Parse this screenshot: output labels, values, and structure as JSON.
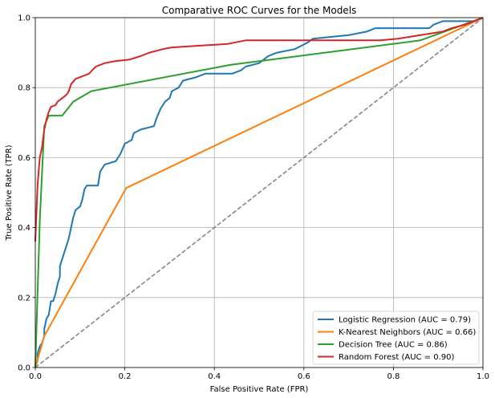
{
  "chart_data": {
    "type": "line",
    "title": "Comparative ROC Curves for the Models",
    "xlabel": "False Positive Rate (FPR)",
    "ylabel": "True Positive Rate (TPR)",
    "xlim": [
      0,
      1
    ],
    "ylim": [
      0,
      1
    ],
    "xticks": [
      "0.0",
      "0.2",
      "0.4",
      "0.6",
      "0.8",
      "1.0"
    ],
    "yticks": [
      "0.0",
      "0.2",
      "0.4",
      "0.6",
      "0.8",
      "1.0"
    ],
    "grid": true,
    "legend_position": "lower right",
    "series": [
      {
        "name": "Logistic Regression (AUC = 0.79)",
        "color": "#1f77b4",
        "points": [
          [
            0,
            0
          ],
          [
            0.005,
            0.02
          ],
          [
            0.005,
            0.04
          ],
          [
            0.01,
            0.06
          ],
          [
            0.015,
            0.07
          ],
          [
            0.02,
            0.09
          ],
          [
            0.02,
            0.11
          ],
          [
            0.025,
            0.14
          ],
          [
            0.03,
            0.15
          ],
          [
            0.035,
            0.19
          ],
          [
            0.04,
            0.19
          ],
          [
            0.045,
            0.21
          ],
          [
            0.05,
            0.24
          ],
          [
            0.055,
            0.26
          ],
          [
            0.055,
            0.29
          ],
          [
            0.06,
            0.31
          ],
          [
            0.065,
            0.33
          ],
          [
            0.07,
            0.35
          ],
          [
            0.075,
            0.37
          ],
          [
            0.08,
            0.4
          ],
          [
            0.085,
            0.43
          ],
          [
            0.09,
            0.45
          ],
          [
            0.1,
            0.46
          ],
          [
            0.105,
            0.48
          ],
          [
            0.11,
            0.51
          ],
          [
            0.115,
            0.52
          ],
          [
            0.14,
            0.52
          ],
          [
            0.145,
            0.56
          ],
          [
            0.155,
            0.58
          ],
          [
            0.18,
            0.59
          ],
          [
            0.19,
            0.61
          ],
          [
            0.2,
            0.64
          ],
          [
            0.215,
            0.65
          ],
          [
            0.22,
            0.67
          ],
          [
            0.235,
            0.68
          ],
          [
            0.265,
            0.69
          ],
          [
            0.27,
            0.71
          ],
          [
            0.28,
            0.74
          ],
          [
            0.29,
            0.76
          ],
          [
            0.3,
            0.77
          ],
          [
            0.305,
            0.79
          ],
          [
            0.32,
            0.8
          ],
          [
            0.33,
            0.82
          ],
          [
            0.36,
            0.83
          ],
          [
            0.38,
            0.84
          ],
          [
            0.44,
            0.84
          ],
          [
            0.46,
            0.85
          ],
          [
            0.47,
            0.86
          ],
          [
            0.5,
            0.87
          ],
          [
            0.51,
            0.88
          ],
          [
            0.52,
            0.89
          ],
          [
            0.54,
            0.9
          ],
          [
            0.58,
            0.91
          ],
          [
            0.61,
            0.93
          ],
          [
            0.62,
            0.94
          ],
          [
            0.7,
            0.95
          ],
          [
            0.74,
            0.96
          ],
          [
            0.76,
            0.97
          ],
          [
            0.88,
            0.97
          ],
          [
            0.89,
            0.98
          ],
          [
            0.91,
            0.99
          ],
          [
            0.98,
            0.99
          ],
          [
            1,
            1
          ]
        ]
      },
      {
        "name": "K-Nearest Neighbors (AUC = 0.66)",
        "color": "#ff7f0e",
        "points": [
          [
            0,
            0
          ],
          [
            0.02,
            0.09
          ],
          [
            0.203,
            0.513
          ],
          [
            1,
            1
          ]
        ]
      },
      {
        "name": "Decision Tree (AUC = 0.86)",
        "color": "#2ca02c",
        "points": [
          [
            0,
            0
          ],
          [
            0.01,
            0.42
          ],
          [
            0.02,
            0.69
          ],
          [
            0.03,
            0.72
          ],
          [
            0.06,
            0.72
          ],
          [
            0.085,
            0.76
          ],
          [
            0.125,
            0.79
          ],
          [
            0.435,
            0.865
          ],
          [
            0.86,
            0.935
          ],
          [
            1,
            1
          ]
        ]
      },
      {
        "name": "Random Forest (AUC = 0.90)",
        "color": "#d62728",
        "points": [
          [
            0,
            0.36
          ],
          [
            0.005,
            0.52
          ],
          [
            0.01,
            0.6
          ],
          [
            0.015,
            0.63
          ],
          [
            0.02,
            0.68
          ],
          [
            0.025,
            0.71
          ],
          [
            0.03,
            0.73
          ],
          [
            0.035,
            0.745
          ],
          [
            0.045,
            0.75
          ],
          [
            0.05,
            0.76
          ],
          [
            0.055,
            0.765
          ],
          [
            0.06,
            0.77
          ],
          [
            0.07,
            0.78
          ],
          [
            0.075,
            0.79
          ],
          [
            0.08,
            0.81
          ],
          [
            0.09,
            0.825
          ],
          [
            0.12,
            0.84
          ],
          [
            0.135,
            0.86
          ],
          [
            0.155,
            0.87
          ],
          [
            0.175,
            0.875
          ],
          [
            0.21,
            0.88
          ],
          [
            0.235,
            0.89
          ],
          [
            0.255,
            0.9
          ],
          [
            0.285,
            0.91
          ],
          [
            0.305,
            0.915
          ],
          [
            0.43,
            0.925
          ],
          [
            0.47,
            0.935
          ],
          [
            0.77,
            0.935
          ],
          [
            0.81,
            0.94
          ],
          [
            0.86,
            0.95
          ],
          [
            0.91,
            0.96
          ],
          [
            0.93,
            0.97
          ],
          [
            0.96,
            0.98
          ],
          [
            1,
            1
          ]
        ]
      },
      {
        "name": "",
        "color": "#808080",
        "dashed": true,
        "points": [
          [
            0,
            0
          ],
          [
            1,
            1
          ]
        ]
      }
    ]
  }
}
